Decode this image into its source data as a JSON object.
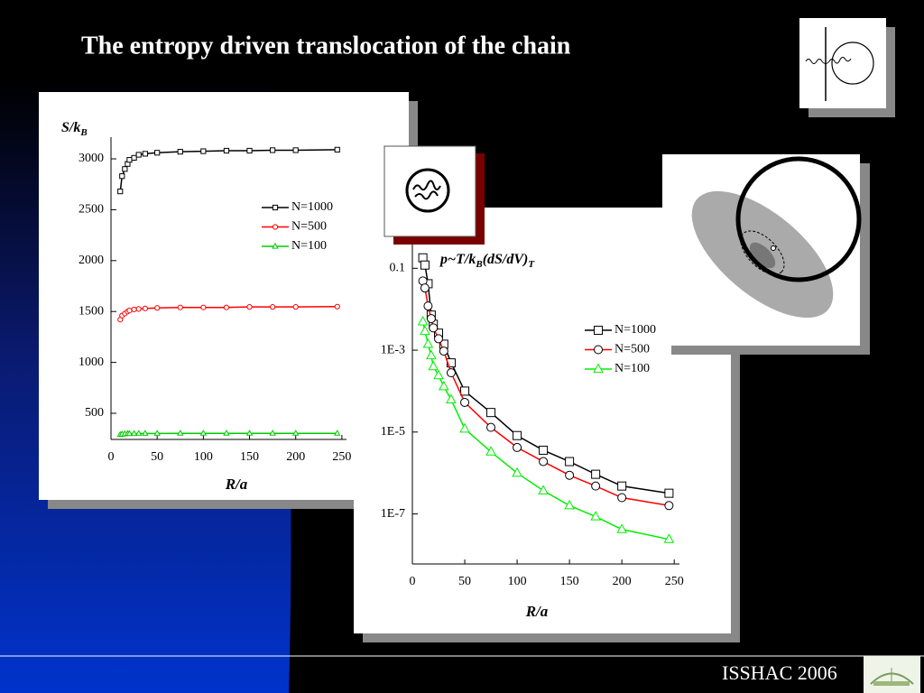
{
  "title": "The entropy driven translocation of the chain",
  "footer": "ISSHAC 2006",
  "chart_data": [
    {
      "type": "line",
      "y_label_parts": [
        "S/k",
        "B"
      ],
      "x_label": "R/a",
      "x": [
        10,
        12,
        15,
        18,
        20,
        25,
        30,
        37,
        50,
        75,
        100,
        125,
        150,
        175,
        200,
        245
      ],
      "series": [
        {
          "name": "N=1000",
          "color": "#000000",
          "marker": "square",
          "values": [
            2680,
            2830,
            2900,
            2950,
            2990,
            3010,
            3040,
            3050,
            3060,
            3070,
            3075,
            3080,
            3080,
            3085,
            3085,
            3090
          ]
        },
        {
          "name": "N=500",
          "color": "#ff0000",
          "marker": "circle",
          "values": [
            1420,
            1460,
            1480,
            1500,
            1510,
            1520,
            1525,
            1530,
            1535,
            1540,
            1540,
            1540,
            1545,
            1545,
            1545,
            1548
          ]
        },
        {
          "name": "N=100",
          "color": "#00cc00",
          "marker": "triangle",
          "values": [
            290,
            295,
            298,
            300,
            300,
            300,
            302,
            302,
            302,
            303,
            303,
            303,
            303,
            303,
            303,
            303
          ]
        }
      ],
      "xlim": [
        0,
        255
      ],
      "xticks": [
        0,
        50,
        100,
        150,
        200,
        250
      ],
      "ylim": [
        243,
        3213
      ],
      "yticks": [
        500,
        1000,
        1500,
        2000,
        2500,
        3000
      ],
      "yscale": "linear",
      "grid": false,
      "legend": "center right"
    },
    {
      "type": "line",
      "y_label_parts": [
        "p~T/k",
        "B",
        "(dS/dV)",
        "T"
      ],
      "x_label": "R/a",
      "x": [
        10,
        12,
        15,
        18,
        20,
        25,
        30,
        37,
        50,
        75,
        100,
        125,
        150,
        175,
        200,
        245
      ],
      "series": [
        {
          "name": "N=1000",
          "color": "#000000",
          "marker": "square",
          "values": [
            0.18,
            0.12,
            0.042,
            0.0072,
            0.0043,
            0.0026,
            0.0014,
            0.00049,
            0.0001,
            3e-05,
            8.2e-06,
            3.6e-06,
            1.9e-06,
            9.3e-07,
            4.8e-07,
            3.2e-07
          ]
        },
        {
          "name": "N=500",
          "color": "#ff0000",
          "marker": "circle",
          "values": [
            0.049,
            0.033,
            0.012,
            0.0059,
            0.0035,
            0.0019,
            0.00095,
            0.00028,
            5.3e-05,
            1.3e-05,
            4.2e-06,
            1.9e-06,
            8.8e-07,
            4.8e-07,
            2.5e-07,
            1.6e-07
          ]
        },
        {
          "name": "N=100",
          "color": "#00ee00",
          "marker": "triangle",
          "values": [
            0.005,
            0.0029,
            0.0014,
            0.00074,
            0.0004,
            0.00024,
            0.00013,
            6.2e-05,
            1.2e-05,
            3.3e-06,
            1e-06,
            3.7e-07,
            1.6e-07,
            8.6e-08,
            4.2e-08,
            2.4e-08
          ]
        }
      ],
      "xlim": [
        0,
        255
      ],
      "xticks": [
        0,
        50,
        100,
        150,
        200,
        250
      ],
      "ylim": [
        6e-09,
        0.4
      ],
      "yticks": [
        0.1,
        {
          "value": 0.001,
          "label": "1E-3"
        },
        {
          "value": 1e-05,
          "label": "1E-5"
        },
        {
          "value": 1e-07,
          "label": "1E-7"
        }
      ],
      "yscale": "log",
      "grid": false,
      "legend": "center right"
    }
  ]
}
